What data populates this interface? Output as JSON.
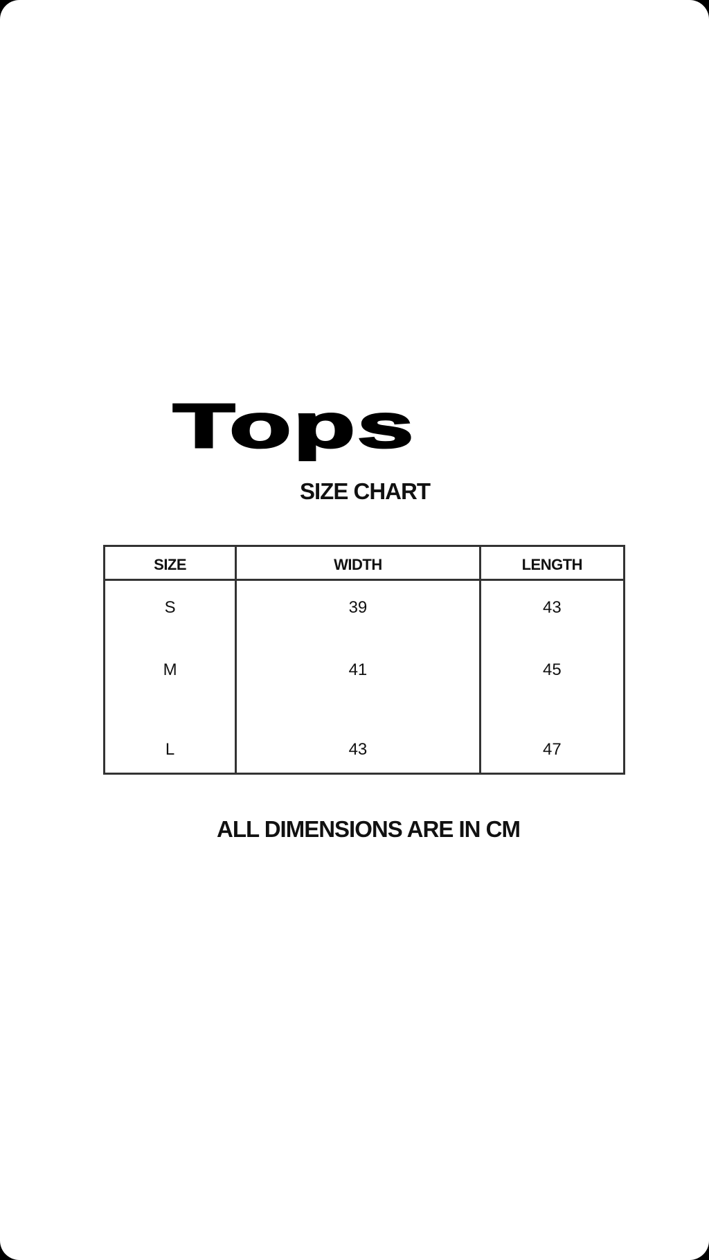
{
  "title": "Tops",
  "subtitle": "SIZE CHART",
  "table": {
    "headers": [
      "SIZE",
      "WIDTH",
      "LENGTH"
    ],
    "rows": [
      [
        "S",
        "39",
        "43"
      ],
      [
        "M",
        "41",
        "45"
      ],
      [
        "L",
        "43",
        "47"
      ]
    ]
  },
  "footer": "ALL DIMENSIONS ARE IN CM"
}
